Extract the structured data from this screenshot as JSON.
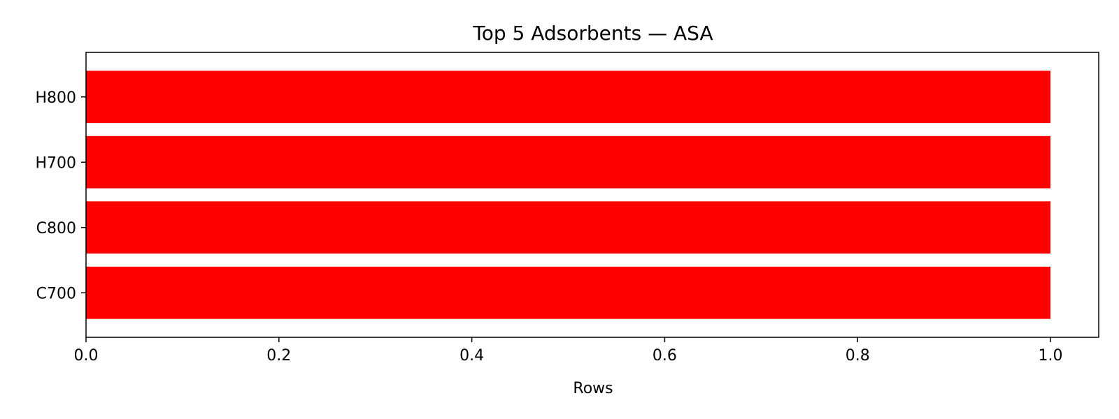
{
  "chart_data": {
    "type": "bar",
    "orientation": "horizontal",
    "title": "Top 5 Adsorbents — ASA",
    "xlabel": "Rows",
    "ylabel": "",
    "categories": [
      "C700",
      "C800",
      "H700",
      "H800"
    ],
    "values": [
      1,
      1,
      1,
      1
    ],
    "xlim": [
      0,
      1.05
    ],
    "xticks": [
      "0.0",
      "0.2",
      "0.4",
      "0.6",
      "0.8",
      "1.0"
    ],
    "xtick_values": [
      0,
      0.2,
      0.4,
      0.6,
      0.8,
      1.0
    ],
    "grid": false,
    "bar_color": "#ff0000"
  }
}
